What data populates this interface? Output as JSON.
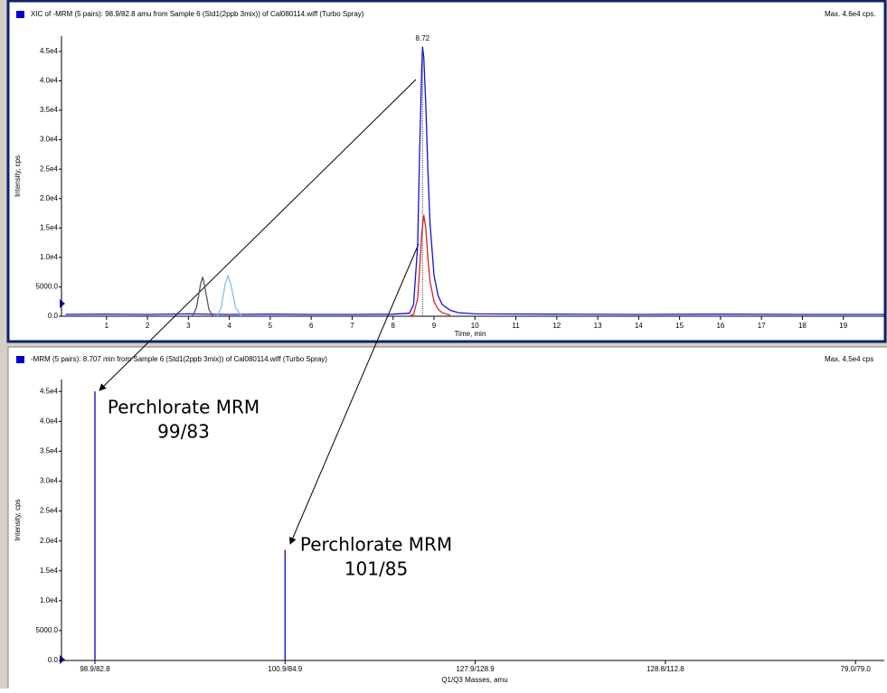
{
  "chart_data": [
    {
      "type": "line",
      "title": "XIC of -MRM (5 pairs): 98.9/82.8 amu from Sample 6 (Std1(2ppb 3mix)) of Cal080114.wiff (Turbo Spray)",
      "max_label": "Max. 4.6e4 cps.",
      "x_label": "Time, min",
      "y_label": "Intensity, cps",
      "xlim": [
        -0.1,
        20
      ],
      "xticks": [
        1,
        2,
        3,
        4,
        5,
        6,
        7,
        8,
        9,
        10,
        11,
        12,
        13,
        14,
        15,
        16,
        17,
        18,
        19
      ],
      "ylim": [
        0,
        47600
      ],
      "yticks": [
        {
          "value": 0,
          "label": "0.0"
        },
        {
          "value": 5000,
          "label": "5000.0"
        },
        {
          "value": 10000,
          "label": "1.0e4"
        },
        {
          "value": 15000,
          "label": "1.5e4"
        },
        {
          "value": 20000,
          "label": "2.0e4"
        },
        {
          "value": 25000,
          "label": "2.5e4"
        },
        {
          "value": 30000,
          "label": "3.0e4"
        },
        {
          "value": 35000,
          "label": "3.5e4"
        },
        {
          "value": 40000,
          "label": "4.0e4"
        },
        {
          "value": 45000,
          "label": "4.5e4"
        }
      ],
      "annotations": [
        "8.72"
      ],
      "series": [
        {
          "color": "#1010e0",
          "x": [
            0,
            1,
            2,
            3,
            4,
            5,
            6,
            7,
            8,
            8.4,
            8.5,
            8.6,
            8.65,
            8.7,
            8.72,
            8.75,
            8.8,
            8.85,
            8.9,
            9.0,
            9.1,
            9.2,
            9.4,
            9.6,
            10,
            12,
            14,
            16,
            18,
            20
          ],
          "values": [
            300,
            350,
            300,
            400,
            300,
            350,
            300,
            300,
            350,
            500,
            2000,
            12000,
            28000,
            42000,
            45800,
            44000,
            36000,
            25000,
            16000,
            7000,
            3500,
            2000,
            1000,
            600,
            400,
            350,
            300,
            350,
            300,
            300
          ]
        },
        {
          "color": "#e02020",
          "x": [
            8.4,
            8.5,
            8.6,
            8.65,
            8.7,
            8.75,
            8.8,
            8.85,
            8.9,
            9.0,
            9.1,
            9.2,
            9.4
          ],
          "values": [
            0,
            300,
            3000,
            8000,
            14000,
            17200,
            15000,
            10000,
            6000,
            2500,
            1200,
            600,
            200
          ]
        },
        {
          "color": "#555555",
          "x": [
            3.1,
            3.2,
            3.3,
            3.35,
            3.4,
            3.5,
            3.6
          ],
          "values": [
            0,
            1500,
            5500,
            6700,
            5000,
            1200,
            0
          ]
        },
        {
          "color": "#88bbee",
          "x": [
            3.7,
            3.8,
            3.9,
            3.97,
            4.05,
            4.15,
            4.3
          ],
          "values": [
            0,
            1500,
            5500,
            6900,
            5000,
            1500,
            0
          ]
        }
      ]
    },
    {
      "type": "bar",
      "title": "-MRM (5 pairs): 8.707 min from Sample 6 (Std1(2ppb 3mix)) of Cal080114.wiff (Turbo Spray)",
      "max_label": "Max. 4.5e4 cps",
      "x_label": "Q1/Q3 Masses, amu",
      "y_label": "Intensity, cps",
      "ylim": [
        0,
        47000
      ],
      "yticks": [
        {
          "value": 0,
          "label": "0.0"
        },
        {
          "value": 5000,
          "label": "5000.0"
        },
        {
          "value": 10000,
          "label": "1.0e4"
        },
        {
          "value": 15000,
          "label": "1.5e4"
        },
        {
          "value": 20000,
          "label": "2.0e4"
        },
        {
          "value": 25000,
          "label": "2.5e4"
        },
        {
          "value": 30000,
          "label": "3.0e4"
        },
        {
          "value": 35000,
          "label": "3.5e4"
        },
        {
          "value": 40000,
          "label": "4.0e4"
        },
        {
          "value": 45000,
          "label": "4.5e4"
        }
      ],
      "categories": [
        "98.9/82.8",
        "100.9/84.9",
        "127.9/128.9",
        "128.8/112.8",
        "79.0/79.0"
      ],
      "values": [
        45000,
        18500,
        0,
        0,
        0
      ],
      "color": "#2020d0",
      "annotations": [
        [
          "Perchlorate MRM",
          "99/83"
        ],
        [
          "Perchlorate MRM",
          "101/85"
        ]
      ]
    }
  ]
}
